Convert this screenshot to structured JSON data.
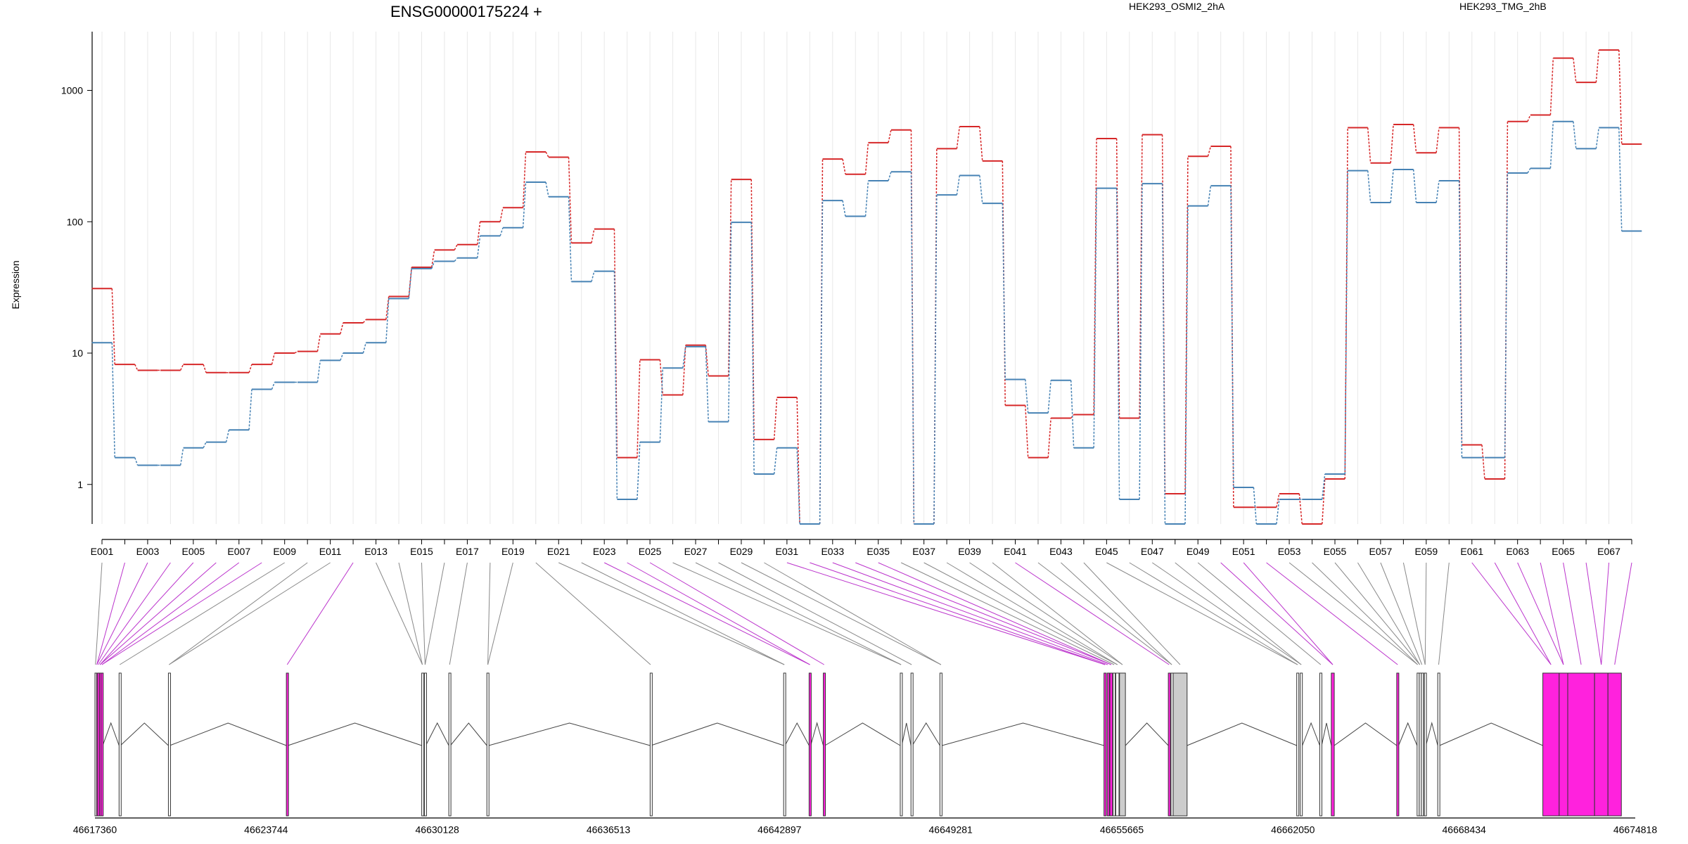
{
  "chart_data": {
    "type": "line",
    "title": "ENSG00000175224 +",
    "ylabel": "Expression",
    "xlabel": "",
    "yscale": "log",
    "ylim": [
      0.5,
      2800
    ],
    "grid": true,
    "legend_placement": "top-right",
    "y_ticks": [
      "1",
      "10",
      "100",
      "1000"
    ],
    "y_tick_values": [
      1,
      10,
      100,
      1000
    ],
    "categories": [
      "E001",
      "E002",
      "E003",
      "E004",
      "E005",
      "E006",
      "E007",
      "E008",
      "E009",
      "E010",
      "E011",
      "E012",
      "E013",
      "E014",
      "E015",
      "E016",
      "E017",
      "E018",
      "E019",
      "E020",
      "E021",
      "E022",
      "E023",
      "E024",
      "E025",
      "E026",
      "E027",
      "E028",
      "E029",
      "E030",
      "E031",
      "E032",
      "E033",
      "E034",
      "E035",
      "E036",
      "E037",
      "E038",
      "E039",
      "E040",
      "E041",
      "E042",
      "E043",
      "E044",
      "E045",
      "E046",
      "E047",
      "E048",
      "E049",
      "E050",
      "E051",
      "E052",
      "E053",
      "E054",
      "E055",
      "E056",
      "E057",
      "E058",
      "E059",
      "E060",
      "E061",
      "E062",
      "E063",
      "E064",
      "E065",
      "E066",
      "E067",
      "E068"
    ],
    "label_every": 2,
    "series": [
      {
        "name": "HEK293_OSMI2_2hA",
        "color": "#d62728",
        "values": [
          31,
          8.2,
          7.4,
          7.4,
          8.2,
          7.1,
          7.1,
          8.2,
          10,
          10.3,
          14,
          17,
          18,
          27,
          45,
          61,
          67,
          100,
          128,
          340,
          310,
          69,
          88,
          1.6,
          8.9,
          4.8,
          11.5,
          6.7,
          210,
          2.2,
          4.6,
          0.5,
          300,
          230,
          400,
          500,
          0.5,
          360,
          530,
          290,
          4,
          1.6,
          3.2,
          3.4,
          430,
          3.2,
          460,
          0.85,
          315,
          375,
          0.67,
          0.67,
          0.85,
          0.5,
          1.1,
          520,
          280,
          550,
          335,
          520,
          2.0,
          1.1,
          580,
          650,
          1760,
          1150,
          2030,
          390
        ]
      },
      {
        "name": "HEK293_TMG_2hB",
        "color": "#4682b4",
        "values": [
          12,
          1.6,
          1.4,
          1.4,
          1.9,
          2.1,
          2.6,
          5.3,
          6,
          6,
          8.8,
          10,
          12,
          26,
          44,
          50,
          53,
          78,
          90,
          200,
          155,
          35,
          42,
          0.77,
          2.1,
          7.7,
          11.2,
          3,
          99,
          1.2,
          1.9,
          0.5,
          145,
          110,
          205,
          240,
          0.5,
          160,
          225,
          138,
          6.3,
          3.5,
          6.2,
          1.9,
          180,
          0.77,
          195,
          0.5,
          132,
          188,
          0.95,
          0.5,
          0.77,
          0.77,
          1.2,
          245,
          140,
          250,
          140,
          205,
          1.6,
          1.6,
          235,
          255,
          580,
          360,
          520,
          85
        ]
      }
    ],
    "genome_ticks": [
      "46617360",
      "46623744",
      "46630128",
      "46636513",
      "46642897",
      "46649281",
      "46655665",
      "46662050",
      "46668434",
      "46674818"
    ],
    "genome_range": [
      46617360,
      46674818
    ],
    "exon_map": [
      [
        46617360,
        46617400,
        0
      ],
      [
        46617420,
        46617440,
        1
      ],
      [
        46617460,
        46617510,
        1
      ],
      [
        46617530,
        46617570,
        1
      ],
      [
        46617590,
        46617650,
        1
      ],
      [
        46618260,
        46618310,
        0
      ],
      [
        46620100,
        46620150,
        0
      ],
      [
        46624500,
        46624560,
        1
      ],
      [
        46629550,
        46629600,
        0
      ],
      [
        46629650,
        46629700,
        0
      ],
      [
        46630560,
        46630620,
        0
      ],
      [
        46631980,
        46632050,
        0
      ],
      [
        46638070,
        46638100,
        0
      ],
      [
        46643050,
        46643100,
        0
      ],
      [
        46644000,
        46644060,
        1
      ],
      [
        46644530,
        46644590,
        1
      ],
      [
        46647400,
        46647460,
        0
      ],
      [
        46647800,
        46647850,
        0
      ],
      [
        46648880,
        46648960,
        0
      ],
      [
        46655000,
        46655080,
        1
      ],
      [
        46655120,
        46655160,
        1
      ],
      [
        46655220,
        46655320,
        1
      ],
      [
        46655340,
        46655420,
        0
      ],
      [
        46655440,
        46655560,
        0
      ],
      [
        46655580,
        46655800,
        0
      ],
      [
        46657400,
        46657460,
        1
      ],
      [
        46657500,
        46657560,
        0
      ],
      [
        46657580,
        46658100,
        0
      ],
      [
        46662190,
        46662250,
        0
      ],
      [
        46662320,
        46662400,
        0
      ],
      [
        46663050,
        46663120,
        0
      ],
      [
        46663480,
        46663590,
        1
      ],
      [
        46665920,
        46665990,
        1
      ],
      [
        46666680,
        46666720,
        0
      ],
      [
        46666760,
        46666800,
        0
      ],
      [
        46666840,
        46666880,
        0
      ],
      [
        46666950,
        46667010,
        0
      ],
      [
        46667450,
        46667520,
        0
      ],
      [
        46671370,
        46671980,
        1
      ],
      [
        46671980,
        46672300,
        1
      ],
      [
        46672300,
        46673300,
        1
      ],
      [
        46673300,
        46673800,
        1
      ],
      [
        46673800,
        46674300,
        1
      ]
    ]
  },
  "colors": {
    "exon_alt": "#ff22dd",
    "exon_plain": "#ffffff",
    "exon_grey": "#cccccc",
    "map_line": "#888888",
    "map_line_alt": "#bb33cc"
  }
}
